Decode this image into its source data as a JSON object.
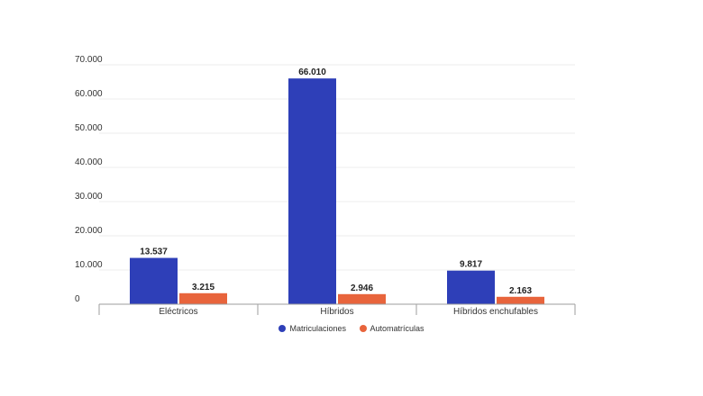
{
  "chart_data": {
    "type": "bar",
    "title": "",
    "xlabel": "",
    "ylabel": "",
    "categories": [
      "Eléctricos",
      "Híbridos",
      "Híbridos enchufables"
    ],
    "series": [
      {
        "name": "Matriculaciones",
        "values": [
          13537,
          66010,
          9817
        ],
        "labels": [
          "13.537",
          "66.010",
          "9.817"
        ],
        "color": "#2e3fb8"
      },
      {
        "name": "Automatrículas",
        "values": [
          3215,
          2946,
          2163
        ],
        "labels": [
          "3.215",
          "2.946",
          "2.163"
        ],
        "color": "#e8643c"
      }
    ],
    "yticks": [
      0,
      10000,
      20000,
      30000,
      40000,
      50000,
      60000,
      70000
    ],
    "ytick_labels": [
      "0",
      "10.000",
      "20.000",
      "30.000",
      "40.000",
      "50.000",
      "60.000",
      "70.000"
    ],
    "ylim": [
      0,
      70000
    ],
    "grid": true,
    "legend_position": "bottom"
  }
}
